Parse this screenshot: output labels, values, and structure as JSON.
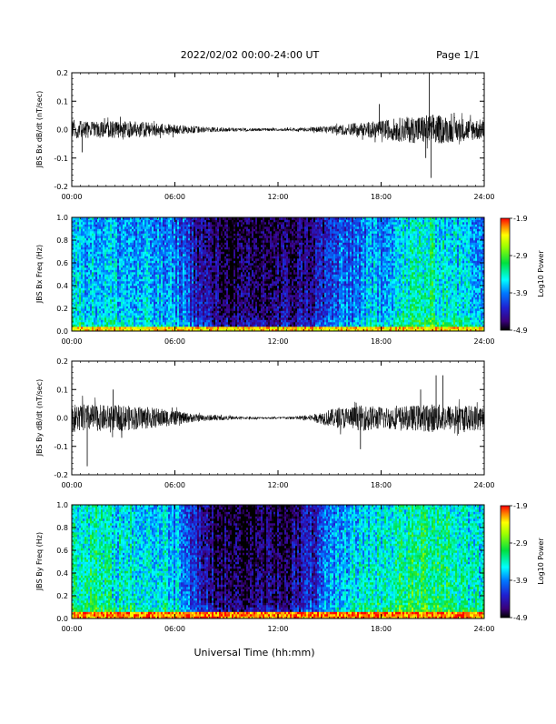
{
  "header": {
    "title": "2022/02/02  00:00-24:00 UT",
    "page": "Page 1/1"
  },
  "xaxis": {
    "label": "Universal Time (hh:mm)",
    "ticks": [
      "00:00",
      "06:00",
      "12:00",
      "18:00",
      "24:00"
    ],
    "range_hours": [
      0,
      24
    ]
  },
  "colorbar": {
    "label": "Log10 Power",
    "ticks": [
      "-1.9",
      "-2.9",
      "-3.9",
      "-4.9"
    ],
    "tick_values": [
      -1.9,
      -2.9,
      -3.9,
      -4.9
    ],
    "range": [
      -4.9,
      -1.9
    ]
  },
  "chart_data": [
    {
      "type": "line",
      "id": "bx-timeseries",
      "ylabel": "JBS Bx dB/dt (nT/sec)",
      "ylim": [
        -0.2,
        0.2
      ],
      "yticks": [
        "-0.2",
        "-0.1",
        "0.0",
        "0.1",
        "0.2"
      ],
      "ytick_values": [
        -0.2,
        -0.1,
        0.0,
        0.1,
        0.2
      ],
      "envelope": {
        "x": [
          0,
          1,
          2,
          3,
          4,
          5,
          6,
          7,
          8,
          9,
          10,
          11,
          12,
          13,
          14,
          15,
          16,
          17,
          18,
          19,
          20,
          21,
          22,
          23,
          24
        ],
        "amplitude": [
          0.035,
          0.03,
          0.028,
          0.03,
          0.03,
          0.022,
          0.017,
          0.013,
          0.009,
          0.007,
          0.006,
          0.005,
          0.005,
          0.006,
          0.009,
          0.013,
          0.02,
          0.026,
          0.032,
          0.042,
          0.048,
          0.055,
          0.045,
          0.04,
          0.035
        ]
      },
      "spikes": [
        {
          "x": 0.6,
          "y": -0.08
        },
        {
          "x": 20.8,
          "y": 0.2
        },
        {
          "x": 20.9,
          "y": -0.17
        },
        {
          "x": 20.6,
          "y": -0.1
        },
        {
          "x": 17.9,
          "y": 0.09
        }
      ]
    },
    {
      "type": "heatmap",
      "id": "bx-spectrogram",
      "ylabel": "JBS Bx Freq (Hz)",
      "ylim": [
        0.0,
        1.0
      ],
      "yticks": [
        "0.0",
        "0.2",
        "0.4",
        "0.6",
        "0.8",
        "1.0"
      ],
      "ytick_values": [
        0.0,
        0.2,
        0.4,
        0.6,
        0.8,
        1.0
      ],
      "zlim": [
        -4.9,
        -1.9
      ],
      "hourly_background_log_power": [
        -3.5,
        -3.6,
        -3.6,
        -3.7,
        -3.7,
        -3.8,
        -3.9,
        -4.4,
        -4.6,
        -4.7,
        -4.7,
        -4.6,
        -4.6,
        -4.5,
        -4.3,
        -4.0,
        -3.9,
        -3.7,
        -3.6,
        -3.4,
        -3.3,
        -3.3,
        -3.5,
        -3.6
      ],
      "low_frequency_enhancement": {
        "freq_max_hz": 0.05,
        "log_power": -2.3
      }
    },
    {
      "type": "line",
      "id": "by-timeseries",
      "ylabel": "JBS By dB/dt (nT/sec)",
      "ylim": [
        -0.2,
        0.2
      ],
      "yticks": [
        "-0.2",
        "-0.1",
        "0.0",
        "0.1",
        "0.2"
      ],
      "ytick_values": [
        -0.2,
        -0.1,
        0.0,
        0.1,
        0.2
      ],
      "envelope": {
        "x": [
          0,
          1,
          2,
          3,
          4,
          5,
          6,
          7,
          8,
          9,
          10,
          11,
          12,
          13,
          14,
          15,
          16,
          17,
          18,
          19,
          20,
          21,
          22,
          23,
          24
        ],
        "amplitude": [
          0.05,
          0.048,
          0.045,
          0.045,
          0.04,
          0.035,
          0.025,
          0.015,
          0.01,
          0.007,
          0.005,
          0.004,
          0.004,
          0.006,
          0.012,
          0.03,
          0.04,
          0.045,
          0.04,
          0.04,
          0.045,
          0.05,
          0.045,
          0.045,
          0.045
        ]
      },
      "spikes": [
        {
          "x": 0.9,
          "y": -0.17
        },
        {
          "x": 21.2,
          "y": 0.15
        },
        {
          "x": 21.6,
          "y": 0.15
        },
        {
          "x": 16.8,
          "y": -0.11
        },
        {
          "x": 20.3,
          "y": 0.1
        },
        {
          "x": 2.4,
          "y": 0.1
        }
      ]
    },
    {
      "type": "heatmap",
      "id": "by-spectrogram",
      "ylabel": "JBS By Freq (Hz)",
      "ylim": [
        0.0,
        1.0
      ],
      "yticks": [
        "0.0",
        "0.2",
        "0.4",
        "0.6",
        "0.8",
        "1.0"
      ],
      "ytick_values": [
        0.0,
        0.2,
        0.4,
        0.6,
        0.8,
        1.0
      ],
      "zlim": [
        -4.9,
        -1.9
      ],
      "hourly_background_log_power": [
        -3.2,
        -3.3,
        -3.4,
        -3.4,
        -3.5,
        -3.5,
        -3.7,
        -4.3,
        -4.6,
        -4.7,
        -4.7,
        -4.6,
        -4.6,
        -4.4,
        -4.1,
        -3.7,
        -3.5,
        -3.4,
        -3.3,
        -3.2,
        -3.1,
        -3.1,
        -3.3,
        -3.4
      ],
      "low_frequency_enhancement": {
        "freq_max_hz": 0.06,
        "log_power": -2.1
      }
    }
  ]
}
